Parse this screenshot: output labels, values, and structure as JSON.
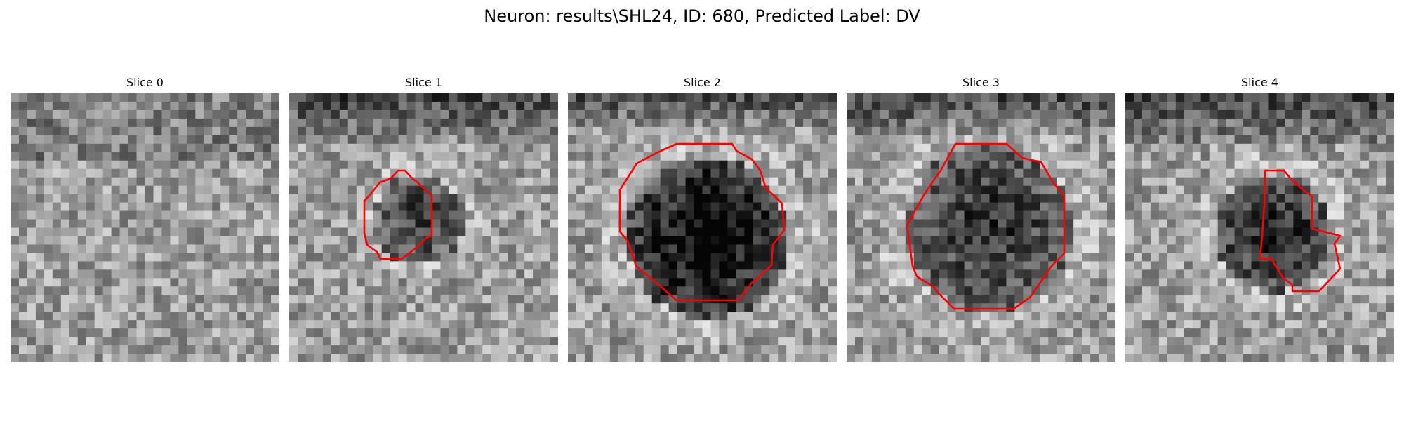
{
  "figure": {
    "title": "Neuron: results\\SHL24, ID: 680, Predicted Label: DV"
  },
  "colors": {
    "contour": "#ff0000",
    "background": "#ffffff"
  },
  "panels": [
    {
      "title": "Slice 0",
      "has_contour": false
    },
    {
      "title": "Slice 1",
      "has_contour": true
    },
    {
      "title": "Slice 2",
      "has_contour": true
    },
    {
      "title": "Slice 3",
      "has_contour": true
    },
    {
      "title": "Slice 4",
      "has_contour": true
    }
  ]
}
